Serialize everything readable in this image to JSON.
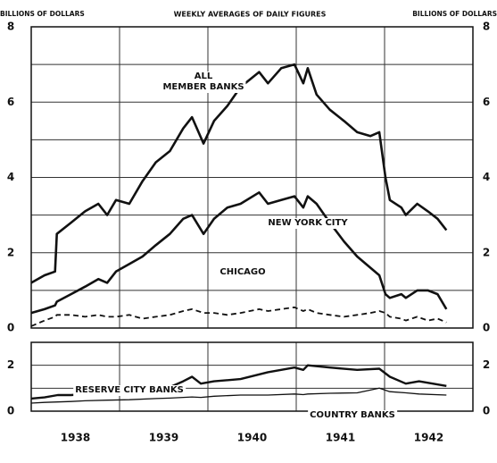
{
  "chart_data": [
    {
      "type": "line",
      "title": "WEEKLY AVERAGES OF DAILY FIGURES",
      "ylabel": "BILLIONS OF DOLLARS",
      "y2label": "BILLIONS OF DOLLARS",
      "xlim": [
        1938,
        1943
      ],
      "x_grid": [
        1939,
        1940,
        1941,
        1942
      ],
      "ylim": [
        0,
        8
      ],
      "yticks": [
        0,
        2,
        4,
        6,
        8
      ],
      "minor_yticks": [
        1,
        3,
        5,
        7
      ],
      "x": [
        1938.0,
        1938.15,
        1938.27,
        1938.29,
        1938.45,
        1938.61,
        1938.76,
        1938.86,
        1938.96,
        1939.11,
        1939.26,
        1939.41,
        1939.57,
        1939.72,
        1939.82,
        1939.95,
        1940.07,
        1940.22,
        1940.37,
        1940.58,
        1940.68,
        1940.83,
        1940.98,
        1941.08,
        1941.13,
        1941.23,
        1941.38,
        1941.54,
        1941.69,
        1941.84,
        1941.94,
        1942.01,
        1942.06,
        1942.19,
        1942.24,
        1942.37,
        1942.49,
        1942.6,
        1942.7
      ],
      "series": [
        {
          "name": "ALL\nMEMBER BANKS",
          "color": "#111",
          "width": 2.6,
          "dashed": false,
          "values": [
            1.2,
            1.4,
            1.5,
            2.5,
            2.8,
            3.1,
            3.3,
            3.0,
            3.4,
            3.3,
            3.9,
            4.4,
            4.7,
            5.3,
            5.6,
            4.9,
            5.5,
            5.9,
            6.4,
            6.8,
            6.5,
            6.9,
            7.0,
            6.5,
            6.9,
            6.2,
            5.8,
            5.5,
            5.2,
            5.1,
            5.2,
            4.0,
            3.4,
            3.2,
            3.0,
            3.3,
            3.1,
            2.9,
            2.6
          ]
        },
        {
          "name": "NEW YORK CITY",
          "color": "#111",
          "width": 2.6,
          "dashed": false,
          "values": [
            0.4,
            0.5,
            0.6,
            0.7,
            0.9,
            1.1,
            1.3,
            1.2,
            1.5,
            1.7,
            1.9,
            2.2,
            2.5,
            2.9,
            3.0,
            2.5,
            2.9,
            3.2,
            3.3,
            3.6,
            3.3,
            3.4,
            3.5,
            3.2,
            3.5,
            3.3,
            2.8,
            2.3,
            1.9,
            1.6,
            1.4,
            0.9,
            0.8,
            0.9,
            0.8,
            1.0,
            1.0,
            0.9,
            0.5
          ]
        },
        {
          "name": "CHICAGO",
          "color": "#111",
          "width": 1.8,
          "dashed": true,
          "values": [
            0.05,
            0.2,
            0.3,
            0.35,
            0.35,
            0.3,
            0.35,
            0.3,
            0.3,
            0.35,
            0.25,
            0.3,
            0.35,
            0.45,
            0.5,
            0.4,
            0.4,
            0.35,
            0.4,
            0.5,
            0.45,
            0.5,
            0.55,
            0.45,
            0.5,
            0.4,
            0.35,
            0.3,
            0.35,
            0.4,
            0.45,
            0.4,
            0.3,
            0.25,
            0.2,
            0.3,
            0.2,
            0.25,
            0.15
          ]
        }
      ]
    },
    {
      "type": "line",
      "xlim": [
        1938,
        1943
      ],
      "x_grid": [
        1939,
        1940,
        1941,
        1942
      ],
      "xticks": [
        {
          "value": 1938.5,
          "label": "1938"
        },
        {
          "value": 1939.5,
          "label": "1939"
        },
        {
          "value": 1940.5,
          "label": "1940"
        },
        {
          "value": 1941.5,
          "label": "1941"
        },
        {
          "value": 1942.5,
          "label": "1942"
        }
      ],
      "ylim": [
        0,
        3
      ],
      "yticks": [
        0,
        2
      ],
      "minor_yticks": [
        1
      ],
      "x": [
        1938.0,
        1938.15,
        1938.3,
        1938.45,
        1938.61,
        1938.86,
        1939.11,
        1939.41,
        1939.57,
        1939.72,
        1939.82,
        1939.92,
        1940.07,
        1940.37,
        1940.68,
        1940.98,
        1941.08,
        1941.13,
        1941.38,
        1941.69,
        1941.94,
        1942.06,
        1942.24,
        1942.39,
        1942.7
      ],
      "series": [
        {
          "name": "RESERVE CITY BANKS",
          "color": "#111",
          "width": 2.4,
          "dashed": false,
          "values": [
            0.55,
            0.6,
            0.7,
            0.7,
            0.75,
            0.8,
            0.85,
            1.0,
            1.05,
            1.3,
            1.5,
            1.2,
            1.3,
            1.4,
            1.7,
            1.9,
            1.8,
            2.0,
            1.9,
            1.8,
            1.85,
            1.5,
            1.2,
            1.3,
            1.1
          ]
        },
        {
          "name": "COUNTRY BANKS",
          "color": "#111",
          "width": 1.3,
          "dashed": false,
          "values": [
            0.35,
            0.38,
            0.4,
            0.42,
            0.45,
            0.48,
            0.5,
            0.55,
            0.57,
            0.6,
            0.62,
            0.6,
            0.65,
            0.7,
            0.7,
            0.75,
            0.72,
            0.75,
            0.78,
            0.8,
            1.0,
            0.85,
            0.8,
            0.75,
            0.7
          ]
        }
      ]
    }
  ]
}
